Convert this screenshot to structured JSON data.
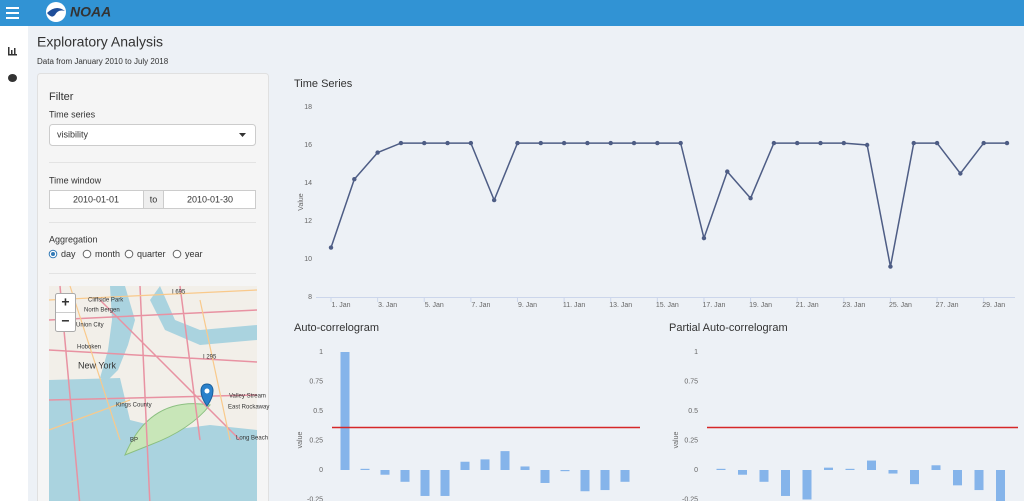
{
  "header": {
    "logo": "NOAA"
  },
  "page": {
    "title": "Exploratory Analysis",
    "subtitle": "Data from January 2010 to July 2018"
  },
  "filter": {
    "heading": "Filter",
    "series_label": "Time series",
    "series_value": "visibility",
    "window_label": "Time window",
    "window_start": "2010-01-01",
    "window_sep": "to",
    "window_end": "2010-01-30",
    "aggregation_label": "Aggregation",
    "aggregation_options": [
      {
        "label": "day",
        "checked": true
      },
      {
        "label": "month",
        "checked": false
      },
      {
        "label": "quarter",
        "checked": false
      },
      {
        "label": "year",
        "checked": false
      }
    ]
  },
  "map": {
    "zoom_in": "+",
    "zoom_out": "−",
    "labels": [
      "Cliffside Park",
      "North Bergen",
      "Union City",
      "Hoboken",
      "New York",
      "Kings County",
      "Valley Stream",
      "East Rockaway",
      "Long Beach",
      "I 695",
      "I 295",
      "BP"
    ]
  },
  "chart_data": [
    {
      "type": "line",
      "title": "Time Series",
      "y_label": "Value",
      "color": "#4e5d85",
      "categories": [
        "1. Jan",
        null,
        "3. Jan",
        null,
        "5. Jan",
        null,
        "7. Jan",
        null,
        "9. Jan",
        null,
        "11. Jan",
        null,
        "13. Jan",
        null,
        "15. Jan",
        null,
        "17. Jan",
        null,
        "19. Jan",
        null,
        "21. Jan",
        null,
        "23. Jan",
        null,
        "25. Jan",
        null,
        "27. Jan",
        null,
        "29. Jan",
        null
      ],
      "values": [
        10.6,
        14.2,
        15.6,
        16.1,
        16.1,
        16.1,
        16.1,
        13.1,
        16.1,
        16.1,
        16.1,
        16.1,
        16.1,
        16.1,
        16.1,
        16.1,
        11.1,
        14.6,
        13.2,
        16.1,
        16.1,
        16.1,
        16.1,
        16.0,
        9.6,
        16.1,
        16.1,
        14.5,
        16.1,
        16.1
      ],
      "ylim": [
        8,
        18
      ],
      "yticks": [
        8,
        10,
        12,
        14,
        16,
        18
      ]
    },
    {
      "type": "bar",
      "title": "Auto-correlogram",
      "y_label": "value",
      "color": "#85b4ea",
      "values": [
        1,
        0.01,
        -0.04,
        -0.1,
        -0.22,
        -0.22,
        0.07,
        0.09,
        0.16,
        0.03,
        -0.11,
        -0.01,
        -0.18,
        -0.17,
        -0.1
      ],
      "threshold": 0.36,
      "threshold_color": "#d62728",
      "ylim": [
        -0.3,
        1
      ],
      "yticks": [
        -0.25,
        0,
        0.25,
        0.5,
        0.75,
        1
      ]
    },
    {
      "type": "bar",
      "title": "Partial Auto-correlogram",
      "y_label": "value",
      "color": "#85b4ea",
      "values": [
        0.01,
        -0.04,
        -0.1,
        -0.22,
        -0.25,
        0.02,
        0.01,
        0.08,
        -0.03,
        -0.12,
        0.04,
        -0.13,
        -0.17,
        -0.27
      ],
      "threshold": 0.36,
      "threshold_color": "#d62728",
      "ylim": [
        -0.3,
        1
      ],
      "yticks": [
        -0.25,
        0,
        0.25,
        0.5,
        0.75,
        1
      ]
    }
  ]
}
